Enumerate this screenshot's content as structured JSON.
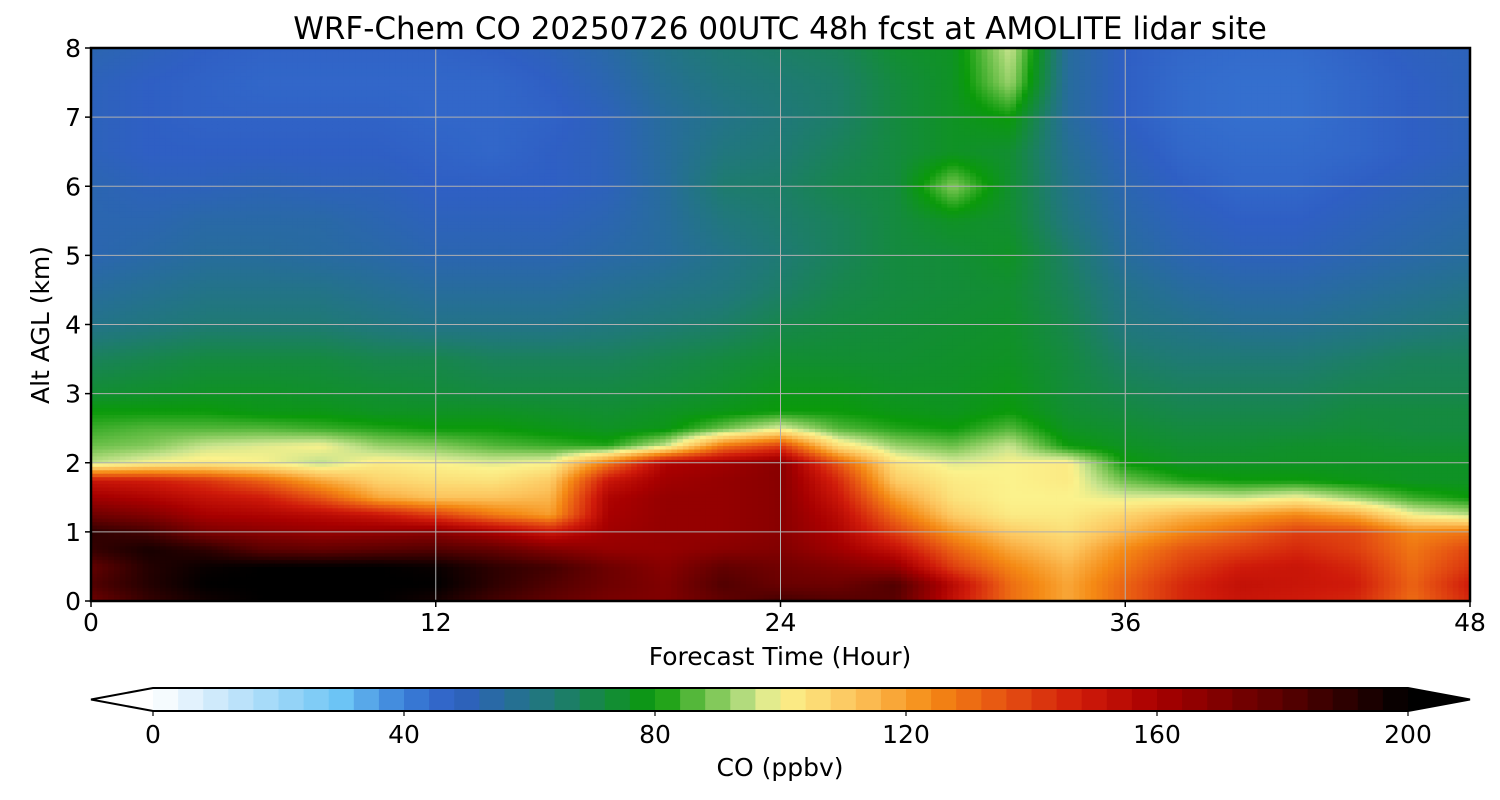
{
  "chart_data": {
    "type": "heatmap",
    "title": "WRF-Chem CO  20250726 00UTC 48h fcst at AMOLITE lidar site",
    "xlabel": "Forecast Time (Hour)",
    "ylabel": "Alt AGL (km)",
    "xlim": [
      0,
      48
    ],
    "ylim": [
      0,
      8
    ],
    "x_ticks": [
      0,
      12,
      24,
      36,
      48
    ],
    "y_ticks": [
      0,
      1,
      2,
      3,
      4,
      5,
      6,
      7,
      8
    ],
    "grid": true,
    "colorbar": {
      "label": "CO  (ppbv)",
      "range": [
        0,
        200
      ],
      "ticks": [
        0,
        40,
        80,
        120,
        160,
        200
      ],
      "extend": "both",
      "orientation": "horizontal",
      "placement": "bottom",
      "colors": [
        "#ffffff",
        "#cfeafb",
        "#6cc4f5",
        "#3a7fd8",
        "#2f5fc4",
        "#1f7a74",
        "#0a9a0a",
        "#6cc04a",
        "#c9e48e",
        "#fbf28c",
        "#fcc35c",
        "#f58a14",
        "#e55012",
        "#cf1a0a",
        "#a80000",
        "#5a0000",
        "#000000"
      ],
      "color_stops": [
        0,
        10,
        30,
        40,
        48,
        64,
        80,
        88,
        96,
        100,
        112,
        124,
        136,
        148,
        160,
        180,
        200
      ]
    },
    "x": [
      0,
      2,
      4,
      6,
      8,
      10,
      12,
      14,
      16,
      18,
      20,
      22,
      24,
      26,
      28,
      30,
      32,
      34,
      36,
      38,
      40,
      42,
      44,
      46,
      48
    ],
    "y": [
      0,
      0.25,
      0.5,
      0.75,
      1.0,
      1.25,
      1.5,
      1.75,
      2.0,
      2.25,
      2.5,
      2.75,
      3.0,
      3.5,
      4.0,
      4.5,
      5.0,
      5.5,
      6.0,
      6.5,
      7.0,
      7.5,
      8.0
    ],
    "z": [
      [
        175,
        188,
        196,
        200,
        200,
        200,
        195,
        185,
        178,
        172,
        170,
        178,
        185,
        182,
        180,
        152,
        130,
        118,
        132,
        145,
        150,
        148,
        145,
        130,
        145
      ],
      [
        182,
        192,
        200,
        200,
        200,
        200,
        200,
        190,
        182,
        175,
        170,
        182,
        176,
        175,
        182,
        155,
        130,
        118,
        132,
        145,
        152,
        150,
        148,
        132,
        148
      ],
      [
        178,
        192,
        198,
        200,
        200,
        200,
        198,
        190,
        185,
        175,
        168,
        178,
        174,
        170,
        165,
        140,
        125,
        115,
        128,
        140,
        148,
        150,
        145,
        130,
        142
      ],
      [
        188,
        195,
        190,
        180,
        178,
        180,
        182,
        178,
        170,
        165,
        165,
        168,
        170,
        162,
        152,
        132,
        118,
        110,
        124,
        135,
        140,
        145,
        140,
        128,
        138
      ],
      [
        190,
        185,
        172,
        168,
        165,
        166,
        168,
        160,
        150,
        162,
        165,
        165,
        168,
        158,
        140,
        122,
        110,
        105,
        115,
        125,
        132,
        140,
        138,
        125,
        128
      ],
      [
        175,
        170,
        160,
        158,
        155,
        150,
        140,
        128,
        120,
        160,
        165,
        165,
        168,
        155,
        130,
        110,
        102,
        102,
        108,
        115,
        120,
        125,
        118,
        100,
        95
      ],
      [
        162,
        158,
        152,
        148,
        135,
        118,
        112,
        112,
        115,
        158,
        165,
        165,
        168,
        150,
        120,
        104,
        100,
        100,
        98,
        98,
        96,
        100,
        92,
        84,
        80
      ],
      [
        150,
        148,
        142,
        132,
        118,
        108,
        105,
        104,
        110,
        150,
        162,
        165,
        168,
        145,
        110,
        102,
        100,
        102,
        88,
        82,
        80,
        80,
        78,
        76,
        76
      ],
      [
        95,
        100,
        102,
        100,
        95,
        102,
        100,
        98,
        100,
        128,
        158,
        162,
        168,
        135,
        104,
        98,
        100,
        102,
        80,
        76,
        76,
        76,
        76,
        76,
        76
      ],
      [
        88,
        90,
        96,
        98,
        100,
        92,
        90,
        86,
        84,
        82,
        96,
        128,
        140,
        105,
        92,
        88,
        96,
        80,
        76,
        74,
        74,
        75,
        75,
        74,
        74
      ],
      [
        84,
        86,
        86,
        86,
        84,
        82,
        80,
        80,
        78,
        76,
        78,
        88,
        98,
        86,
        82,
        80,
        86,
        76,
        74,
        72,
        72,
        72,
        73,
        72,
        72
      ],
      [
        80,
        80,
        80,
        78,
        78,
        76,
        76,
        76,
        75,
        74,
        76,
        78,
        80,
        80,
        78,
        77,
        80,
        74,
        72,
        70,
        70,
        70,
        72,
        72,
        72
      ],
      [
        74,
        75,
        76,
        76,
        75,
        74,
        73,
        72,
        72,
        72,
        73,
        75,
        78,
        78,
        76,
        76,
        78,
        73,
        70,
        68,
        68,
        68,
        70,
        70,
        70
      ],
      [
        68,
        70,
        72,
        72,
        72,
        70,
        70,
        68,
        68,
        68,
        70,
        72,
        74,
        74,
        74,
        75,
        76,
        72,
        66,
        64,
        64,
        64,
        66,
        68,
        68
      ],
      [
        60,
        62,
        64,
        64,
        64,
        62,
        60,
        60,
        60,
        62,
        64,
        66,
        70,
        72,
        73,
        74,
        75,
        70,
        62,
        60,
        58,
        58,
        60,
        62,
        64
      ],
      [
        56,
        58,
        60,
        60,
        60,
        58,
        56,
        56,
        56,
        58,
        60,
        62,
        66,
        70,
        72,
        73,
        74,
        68,
        60,
        56,
        54,
        54,
        56,
        58,
        60
      ],
      [
        52,
        54,
        56,
        56,
        55,
        54,
        52,
        52,
        52,
        54,
        56,
        60,
        64,
        68,
        72,
        73,
        76,
        66,
        56,
        52,
        50,
        50,
        52,
        54,
        56
      ],
      [
        52,
        52,
        54,
        54,
        54,
        52,
        50,
        50,
        50,
        52,
        56,
        62,
        65,
        68,
        72,
        76,
        74,
        62,
        54,
        50,
        48,
        48,
        50,
        52,
        54
      ],
      [
        52,
        50,
        50,
        51,
        50,
        50,
        48,
        48,
        48,
        50,
        56,
        65,
        66,
        70,
        72,
        90,
        74,
        60,
        52,
        48,
        46,
        46,
        48,
        50,
        52
      ],
      [
        50,
        48,
        48,
        48,
        48,
        48,
        47,
        46,
        48,
        50,
        56,
        62,
        64,
        68,
        72,
        76,
        74,
        58,
        50,
        46,
        45,
        45,
        46,
        48,
        50
      ],
      [
        50,
        48,
        47,
        47,
        47,
        47,
        46,
        46,
        47,
        50,
        56,
        60,
        63,
        66,
        72,
        76,
        80,
        56,
        48,
        45,
        44,
        44,
        46,
        48,
        50
      ],
      [
        50,
        48,
        47,
        46,
        46,
        46,
        46,
        46,
        48,
        52,
        58,
        62,
        64,
        66,
        72,
        76,
        92,
        56,
        48,
        45,
        44,
        44,
        46,
        48,
        50
      ],
      [
        52,
        50,
        48,
        47,
        47,
        47,
        47,
        48,
        50,
        54,
        60,
        64,
        66,
        68,
        74,
        76,
        96,
        56,
        48,
        46,
        45,
        45,
        47,
        49,
        50
      ]
    ]
  }
}
